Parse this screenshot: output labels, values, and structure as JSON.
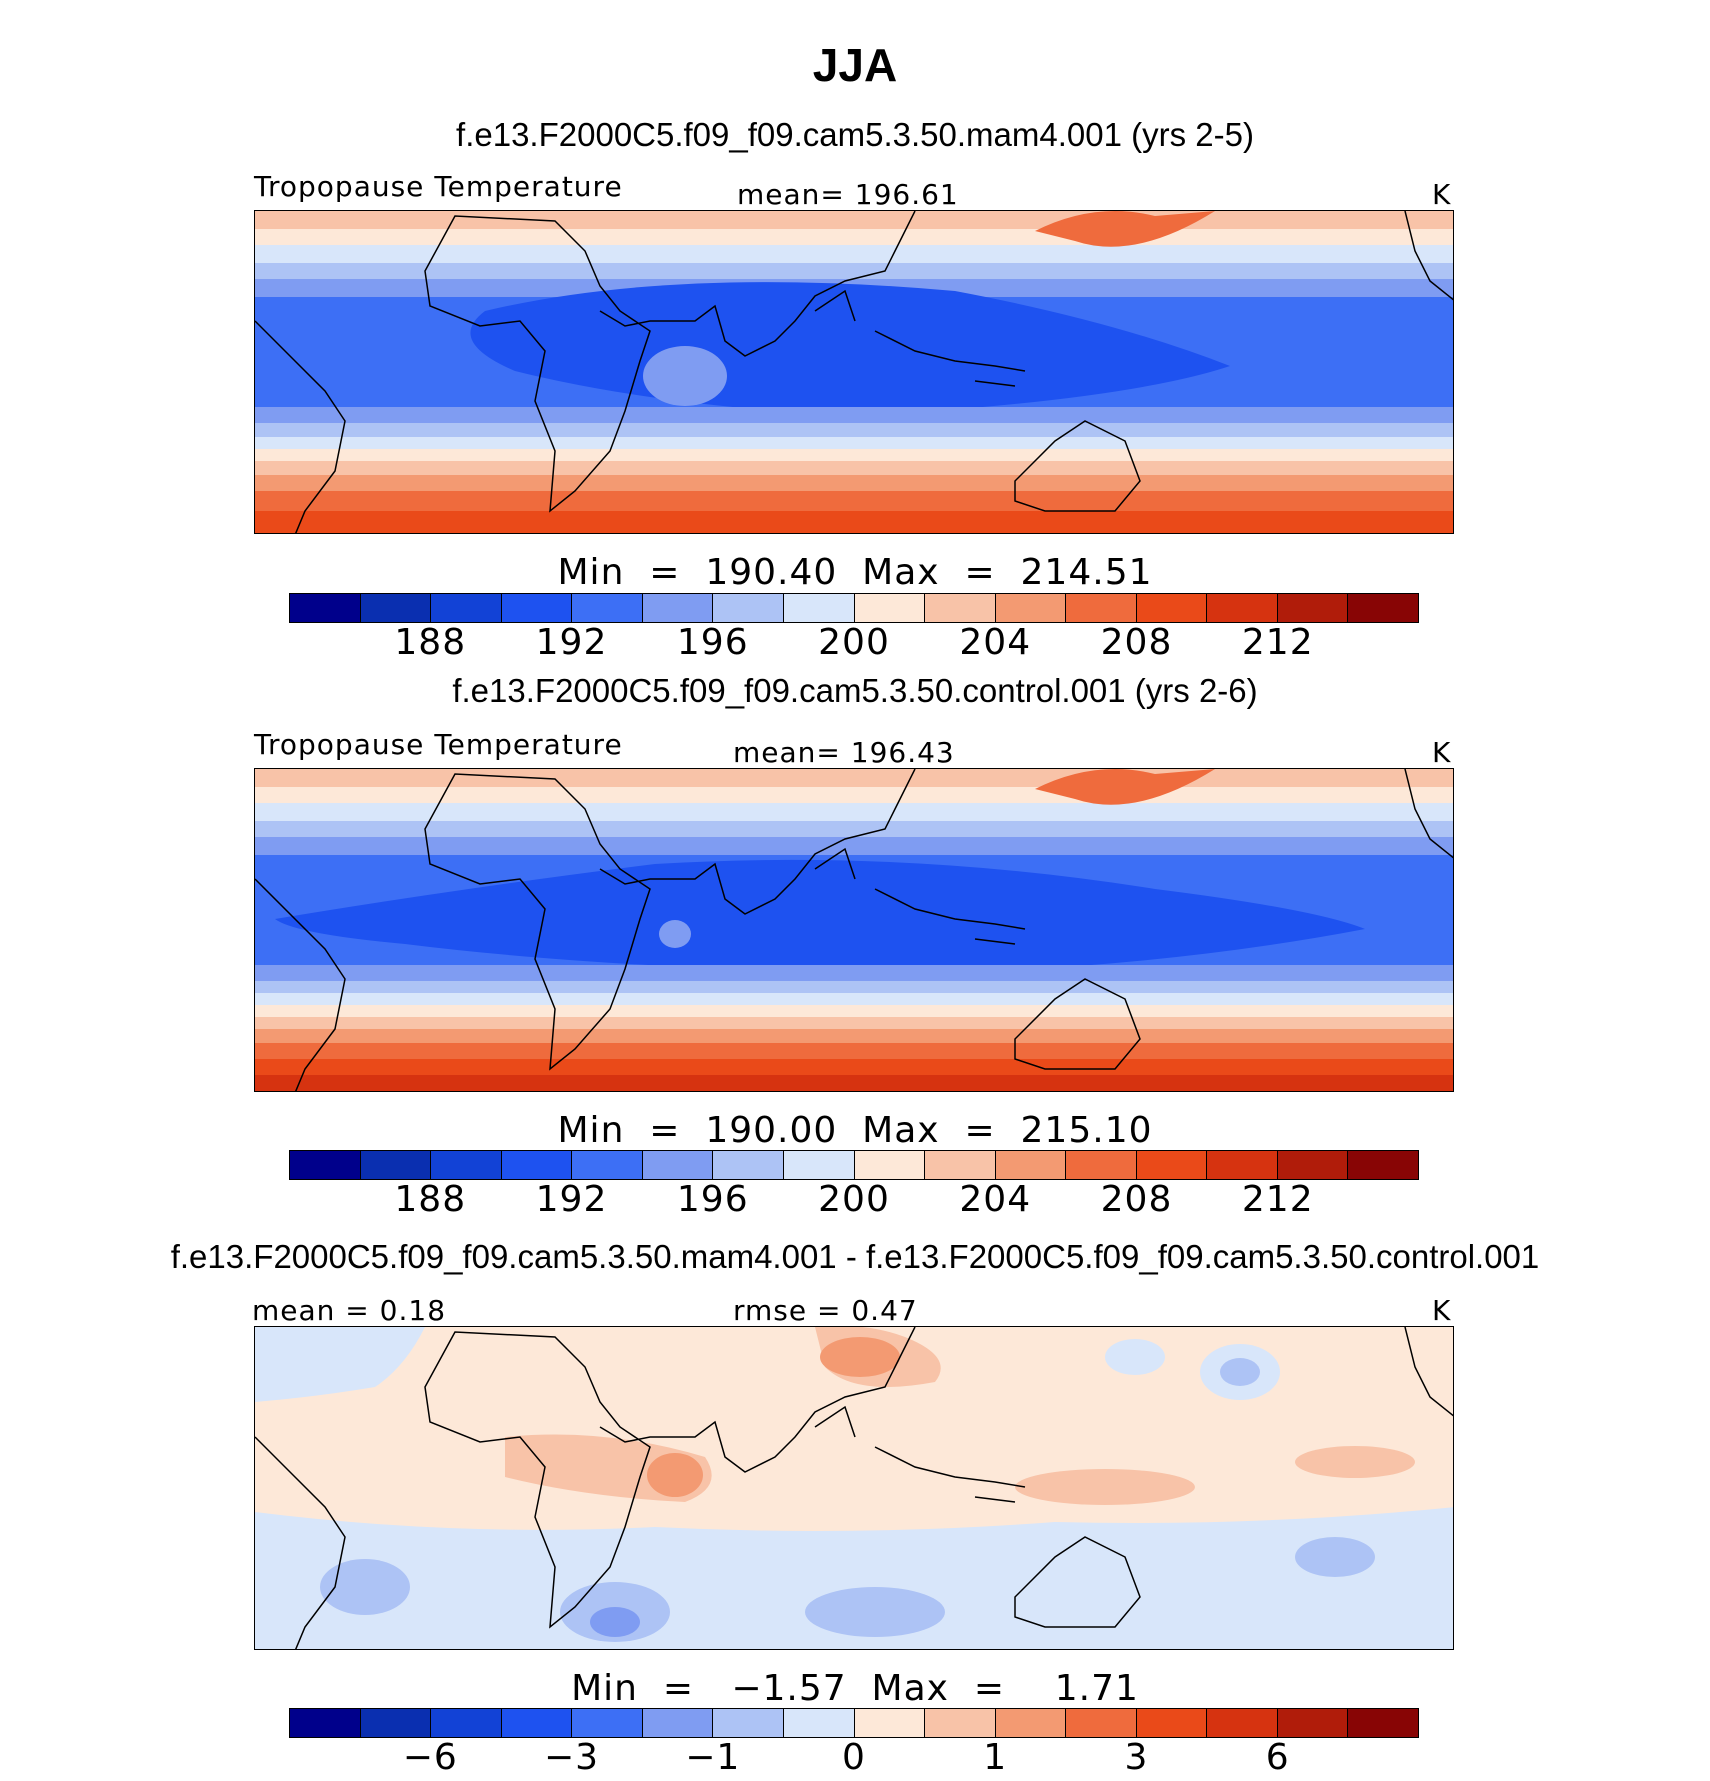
{
  "title": "JJA",
  "colors": [
    "#00008b",
    "#0a2fb0",
    "#1242d6",
    "#1e52f0",
    "#3d6ff5",
    "#7f9cf2",
    "#adc3f5",
    "#d8e6fa",
    "#fde8d8",
    "#f8c3a8",
    "#f39a72",
    "#ef6b3d",
    "#ea4a19",
    "#d63310",
    "#b01c0a",
    "#880505"
  ],
  "land_color": "#000000",
  "panels": [
    {
      "title": "f.e13.F2000C5.f09_f09.cam5.3.50.mam4.001 (yrs 2-5)",
      "left_label": "Tropopause Temperature",
      "center_label": "mean=  196.61",
      "units": "K",
      "minmax": "Min  =  190.40  Max  =  214.51",
      "ticks": [
        "188",
        "192",
        "196",
        "200",
        "204",
        "208",
        "212"
      ]
    },
    {
      "title": "f.e13.F2000C5.f09_f09.cam5.3.50.control.001 (yrs 2-6)",
      "left_label": "Tropopause Temperature",
      "center_label": "mean=  196.43",
      "units": "K",
      "minmax": "Min  =  190.00  Max  =  215.10",
      "ticks": [
        "188",
        "192",
        "196",
        "200",
        "204",
        "208",
        "212"
      ]
    },
    {
      "title": "f.e13.F2000C5.f09_f09.cam5.3.50.mam4.001 - f.e13.F2000C5.f09_f09.cam5.3.50.control.001",
      "left_label": "mean =    0.18",
      "center_label": "rmse =    0.47",
      "units": "K",
      "minmax": "Min  =   −1.57  Max  =    1.71",
      "ticks": [
        "−6",
        "−3",
        "−1",
        "0",
        "1",
        "3",
        "6"
      ]
    }
  ],
  "chart_data": [
    {
      "type": "heatmap",
      "title": "f.e13.F2000C5.f09_f09.cam5.3.50.mam4.001 (yrs 2-5)",
      "variable": "Tropopause Temperature",
      "units": "K",
      "mean": 196.61,
      "min": 190.4,
      "max": 214.51,
      "colorbar_ticks": [
        188,
        192,
        196,
        200,
        204,
        208,
        212
      ],
      "contour_levels": [
        186,
        188,
        190,
        192,
        194,
        196,
        198,
        200,
        202,
        204,
        206,
        208,
        210,
        212,
        214
      ]
    },
    {
      "type": "heatmap",
      "title": "f.e13.F2000C5.f09_f09.cam5.3.50.control.001 (yrs 2-6)",
      "variable": "Tropopause Temperature",
      "units": "K",
      "mean": 196.43,
      "min": 190.0,
      "max": 215.1,
      "colorbar_ticks": [
        188,
        192,
        196,
        200,
        204,
        208,
        212
      ],
      "contour_levels": [
        186,
        188,
        190,
        192,
        194,
        196,
        198,
        200,
        202,
        204,
        206,
        208,
        210,
        212,
        214
      ]
    },
    {
      "type": "heatmap",
      "title": "f.e13.F2000C5.f09_f09.cam5.3.50.mam4.001 - f.e13.F2000C5.f09_f09.cam5.3.50.control.001",
      "units": "K",
      "mean": 0.18,
      "rmse": 0.47,
      "min": -1.57,
      "max": 1.71,
      "colorbar_ticks": [
        -6,
        -3,
        -1,
        0,
        1,
        3,
        6
      ]
    }
  ]
}
